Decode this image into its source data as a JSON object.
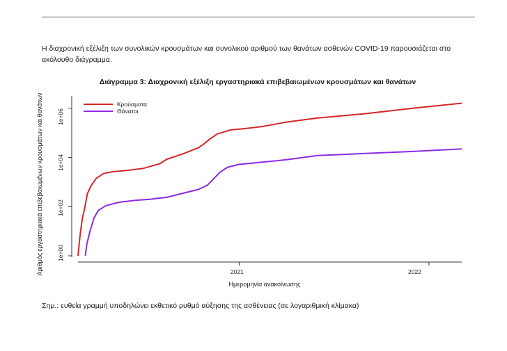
{
  "intro_text": "Η διαχρονική εξέλιξη των συνολικών κρουσμάτων και συνολικού αριθμού των θανάτων ασθενών COVID-19 παρουσιάζεται στο ακόλουθο διάγραμμα.",
  "footnote": "Σημ.: ευθεία γραμμή υποδηλώνει εκθετικό ρυθμό αύξησης της ασθένειας (σε λογαριθμική κλίμακα)",
  "chart_data": {
    "type": "line",
    "title": "Διάγραμμα 3: Διαχρονική εξέλιξη εργαστηριακά επιβεβαιωμένων κρουσμάτων και θανάτων",
    "xlabel": "Ημερομηνία ανακοίνωσης",
    "ylabel": "Αριθμός εργαστηριακά επιβεβαιωμένων κρουσμάτων και θανάτων",
    "y_scale": "log",
    "y_ticks": [
      "1e+00",
      "1e+02",
      "1e+04",
      "1e+06"
    ],
    "x_ticks": [
      "2021",
      "2022"
    ],
    "x_range": [
      "2020-02-26",
      "2022-03-05"
    ],
    "y_range_log10": [
      0,
      6.5
    ],
    "grid": false,
    "legend_position": "top-left",
    "series": [
      {
        "name": "Κρούσματα",
        "color": "#d62728",
        "points": [
          [
            "2020-02-26",
            1
          ],
          [
            "2020-03-01",
            7
          ],
          [
            "2020-03-05",
            30
          ],
          [
            "2020-03-10",
            90
          ],
          [
            "2020-03-15",
            330
          ],
          [
            "2020-03-22",
            700
          ],
          [
            "2020-04-01",
            1400
          ],
          [
            "2020-04-15",
            2200
          ],
          [
            "2020-05-01",
            2600
          ],
          [
            "2020-06-01",
            3000
          ],
          [
            "2020-07-01",
            3600
          ],
          [
            "2020-08-01",
            5500
          ],
          [
            "2020-08-15",
            8500
          ],
          [
            "2020-09-15",
            14000
          ],
          [
            "2020-10-15",
            25000
          ],
          [
            "2020-10-25",
            35000
          ],
          [
            "2020-11-05",
            55000
          ],
          [
            "2020-11-20",
            90000
          ],
          [
            "2020-12-15",
            130000
          ],
          [
            "2021-01-15",
            150000
          ],
          [
            "2021-02-15",
            180000
          ],
          [
            "2021-04-01",
            270000
          ],
          [
            "2021-06-01",
            400000
          ],
          [
            "2021-09-01",
            600000
          ],
          [
            "2021-12-01",
            1000000
          ],
          [
            "2022-03-05",
            1600000
          ]
        ]
      },
      {
        "name": "Θάνατοι",
        "color": "#8a2be2",
        "points": [
          [
            "2020-03-11",
            1
          ],
          [
            "2020-03-14",
            3
          ],
          [
            "2020-03-20",
            10
          ],
          [
            "2020-03-28",
            35
          ],
          [
            "2020-04-05",
            70
          ],
          [
            "2020-04-20",
            110
          ],
          [
            "2020-05-15",
            150
          ],
          [
            "2020-06-15",
            180
          ],
          [
            "2020-07-15",
            200
          ],
          [
            "2020-08-15",
            240
          ],
          [
            "2020-09-15",
            350
          ],
          [
            "2020-10-15",
            500
          ],
          [
            "2020-11-01",
            750
          ],
          [
            "2020-11-15",
            1500
          ],
          [
            "2020-11-25",
            2500
          ],
          [
            "2020-12-10",
            4000
          ],
          [
            "2021-01-01",
            5200
          ],
          [
            "2021-02-01",
            6000
          ],
          [
            "2021-04-01",
            8000
          ],
          [
            "2021-06-01",
            12000
          ],
          [
            "2021-09-01",
            14500
          ],
          [
            "2021-12-01",
            17500
          ],
          [
            "2022-03-05",
            22000
          ]
        ]
      }
    ]
  }
}
